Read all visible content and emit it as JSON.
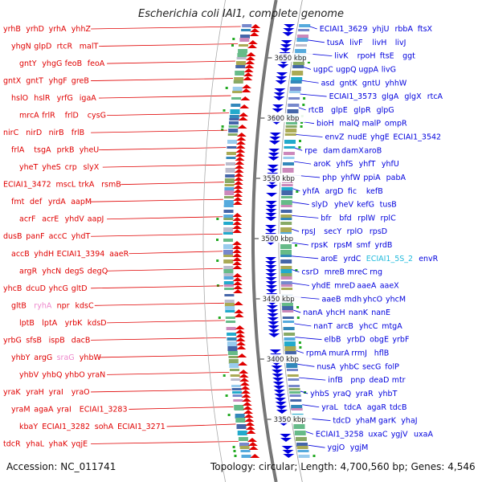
{
  "title": "Escherichia coli IAI1, complete genome",
  "footer": {
    "accession": "Accession: NC_011741",
    "topology": "Topology: circular; Length: 4,700,560 bp; Genes: 4,546"
  },
  "colors": {
    "left_strand": "#e00000",
    "right_strand": "#0000dd",
    "rna": "#ee88cc",
    "rrna": "#22bbdd",
    "backbone": "#777777",
    "marker": "#22aa22"
  },
  "scale": [
    {
      "label": "3650 kbp",
      "pos": 3650
    },
    {
      "label": "3600 kbp",
      "pos": 3600
    },
    {
      "label": "3550 kbp",
      "pos": 3550
    },
    {
      "label": "3500 kbp",
      "pos": 3500
    },
    {
      "label": "3450 kbp",
      "pos": 3450
    },
    {
      "label": "3400 kbp",
      "pos": 3400
    },
    {
      "label": "3350 kbp",
      "pos": 3350
    }
  ],
  "left_genes": [
    {
      "label": "yrhB",
      "kind": "cds"
    },
    {
      "label": "yrhD",
      "kind": "cds"
    },
    {
      "label": "yrhA",
      "kind": "cds"
    },
    {
      "label": "yhhZ",
      "kind": "cds"
    },
    {
      "label": "yhgN",
      "kind": "cds"
    },
    {
      "label": "glpD",
      "kind": "cds"
    },
    {
      "label": "rtcR",
      "kind": "cds"
    },
    {
      "label": "malT",
      "kind": "cds"
    },
    {
      "label": "gntY",
      "kind": "cds"
    },
    {
      "label": "yhgG",
      "kind": "cds"
    },
    {
      "label": "feoB",
      "kind": "cds"
    },
    {
      "label": "feoA",
      "kind": "cds"
    },
    {
      "label": "gntX",
      "kind": "cds"
    },
    {
      "label": "gntT",
      "kind": "cds"
    },
    {
      "label": "yhgF",
      "kind": "cds"
    },
    {
      "label": "greB",
      "kind": "cds"
    },
    {
      "label": "hslO",
      "kind": "cds"
    },
    {
      "label": "hslR",
      "kind": "cds"
    },
    {
      "label": "yrfG",
      "kind": "cds"
    },
    {
      "label": "igaA",
      "kind": "cds"
    },
    {
      "label": "mrcA",
      "kind": "cds"
    },
    {
      "label": "frlR",
      "kind": "cds"
    },
    {
      "label": "frlD",
      "kind": "cds"
    },
    {
      "label": "cysG",
      "kind": "cds"
    },
    {
      "label": "nirC",
      "kind": "cds"
    },
    {
      "label": "nirD",
      "kind": "cds"
    },
    {
      "label": "nirB",
      "kind": "cds"
    },
    {
      "label": "frlB",
      "kind": "cds"
    },
    {
      "label": "frlA",
      "kind": "cds"
    },
    {
      "label": "tsgA",
      "kind": "cds"
    },
    {
      "label": "prkB",
      "kind": "cds"
    },
    {
      "label": "yheU",
      "kind": "cds"
    },
    {
      "label": "yheT",
      "kind": "cds"
    },
    {
      "label": "yheS",
      "kind": "cds"
    },
    {
      "label": "crp",
      "kind": "cds"
    },
    {
      "label": "slyX",
      "kind": "cds"
    },
    {
      "label": "ECIAI1_3472",
      "kind": "cds"
    },
    {
      "label": "mscL",
      "kind": "cds"
    },
    {
      "label": "trkA",
      "kind": "cds"
    },
    {
      "label": "rsmB",
      "kind": "cds"
    },
    {
      "label": "fmt",
      "kind": "cds"
    },
    {
      "label": "def",
      "kind": "cds"
    },
    {
      "label": "yrdA",
      "kind": "cds"
    },
    {
      "label": "aapM",
      "kind": "cds"
    },
    {
      "label": "acrF",
      "kind": "cds"
    },
    {
      "label": "acrE",
      "kind": "cds"
    },
    {
      "label": "yhdV",
      "kind": "cds"
    },
    {
      "label": "aapJ",
      "kind": "cds"
    },
    {
      "label": "dusB",
      "kind": "cds"
    },
    {
      "label": "panF",
      "kind": "cds"
    },
    {
      "label": "accC",
      "kind": "cds"
    },
    {
      "label": "yhdT",
      "kind": "cds"
    },
    {
      "label": "accB",
      "kind": "cds"
    },
    {
      "label": "yhdH",
      "kind": "cds"
    },
    {
      "label": "ECIAI1_3394",
      "kind": "cds"
    },
    {
      "label": "aaeR",
      "kind": "cds"
    },
    {
      "label": "argR",
      "kind": "cds"
    },
    {
      "label": "yhcN",
      "kind": "cds"
    },
    {
      "label": "degS",
      "kind": "cds"
    },
    {
      "label": "degQ",
      "kind": "cds"
    },
    {
      "label": "yhcB",
      "kind": "cds"
    },
    {
      "label": "dcuD",
      "kind": "cds"
    },
    {
      "label": "yhcG",
      "kind": "cds"
    },
    {
      "label": "gltD",
      "kind": "cds"
    },
    {
      "label": "gltB",
      "kind": "cds"
    },
    {
      "label": "ryhA",
      "kind": "rna"
    },
    {
      "label": "npr",
      "kind": "cds"
    },
    {
      "label": "kdsC",
      "kind": "cds"
    },
    {
      "label": "lptB",
      "kind": "cds"
    },
    {
      "label": "lptA",
      "kind": "cds"
    },
    {
      "label": "yrbK",
      "kind": "cds"
    },
    {
      "label": "kdsD",
      "kind": "cds"
    },
    {
      "label": "yrbG",
      "kind": "cds"
    },
    {
      "label": "sfsB",
      "kind": "cds"
    },
    {
      "label": "ispB",
      "kind": "cds"
    },
    {
      "label": "dacB",
      "kind": "cds"
    },
    {
      "label": "yhbY",
      "kind": "cds"
    },
    {
      "label": "argG",
      "kind": "cds"
    },
    {
      "label": "sraG",
      "kind": "rna"
    },
    {
      "label": "yhbW",
      "kind": "cds"
    },
    {
      "label": "yhbV",
      "kind": "cds"
    },
    {
      "label": "yhbQ",
      "kind": "cds"
    },
    {
      "label": "yhbO",
      "kind": "cds"
    },
    {
      "label": "yraN",
      "kind": "cds"
    },
    {
      "label": "yraK",
      "kind": "cds"
    },
    {
      "label": "yraH",
      "kind": "cds"
    },
    {
      "label": "yraI",
      "kind": "cds"
    },
    {
      "label": "yraO",
      "kind": "cds"
    },
    {
      "label": "yraM",
      "kind": "cds"
    },
    {
      "label": "agaA",
      "kind": "cds"
    },
    {
      "label": "yraI",
      "kind": "cds"
    },
    {
      "label": "ECIAI1_3283",
      "kind": "cds"
    },
    {
      "label": "kbaY",
      "kind": "cds"
    },
    {
      "label": "ECIAI1_3282",
      "kind": "cds"
    },
    {
      "label": "sohA",
      "kind": "cds"
    },
    {
      "label": "ECIAI1_3271",
      "kind": "cds"
    },
    {
      "label": "tdcR",
      "kind": "cds"
    },
    {
      "label": "yhaL",
      "kind": "cds"
    },
    {
      "label": "yhaK",
      "kind": "cds"
    },
    {
      "label": "yqjE",
      "kind": "cds"
    }
  ],
  "right_genes": [
    {
      "label": "ECIAI1_3629",
      "kind": "cds"
    },
    {
      "label": "yhjU",
      "kind": "cds"
    },
    {
      "label": "rbbA",
      "kind": "cds"
    },
    {
      "label": "ftsX",
      "kind": "cds"
    },
    {
      "label": "tusA",
      "kind": "cds"
    },
    {
      "label": "livF",
      "kind": "cds"
    },
    {
      "label": "livH",
      "kind": "cds"
    },
    {
      "label": "livJ",
      "kind": "cds"
    },
    {
      "label": "livK",
      "kind": "cds"
    },
    {
      "label": "rpoH",
      "kind": "cds"
    },
    {
      "label": "ftsE",
      "kind": "cds"
    },
    {
      "label": "ggt",
      "kind": "cds"
    },
    {
      "label": "ugpC",
      "kind": "cds"
    },
    {
      "label": "ugpQ",
      "kind": "cds"
    },
    {
      "label": "ugpA",
      "kind": "cds"
    },
    {
      "label": "livG",
      "kind": "cds"
    },
    {
      "label": "asd",
      "kind": "cds"
    },
    {
      "label": "gntK",
      "kind": "cds"
    },
    {
      "label": "gntU",
      "kind": "cds"
    },
    {
      "label": "yhhW",
      "kind": "cds"
    },
    {
      "label": "ECIAI1_3573",
      "kind": "cds"
    },
    {
      "label": "glgA",
      "kind": "cds"
    },
    {
      "label": "glgX",
      "kind": "cds"
    },
    {
      "label": "rtcA",
      "kind": "cds"
    },
    {
      "label": "rtcB",
      "kind": "cds"
    },
    {
      "label": "glpE",
      "kind": "cds"
    },
    {
      "label": "glpR",
      "kind": "cds"
    },
    {
      "label": "glpG",
      "kind": "cds"
    },
    {
      "label": "bioH",
      "kind": "cds"
    },
    {
      "label": "malQ",
      "kind": "cds"
    },
    {
      "label": "malP",
      "kind": "cds"
    },
    {
      "label": "ompR",
      "kind": "cds"
    },
    {
      "label": "envZ",
      "kind": "cds"
    },
    {
      "label": "nudE",
      "kind": "cds"
    },
    {
      "label": "yhgE",
      "kind": "cds"
    },
    {
      "label": "ECIAI1_3542",
      "kind": "cds"
    },
    {
      "label": "rpe",
      "kind": "cds"
    },
    {
      "label": "dam",
      "kind": "cds"
    },
    {
      "label": "damX",
      "kind": "cds"
    },
    {
      "label": "aroB",
      "kind": "cds"
    },
    {
      "label": "aroK",
      "kind": "cds"
    },
    {
      "label": "yhfS",
      "kind": "cds"
    },
    {
      "label": "yhfT",
      "kind": "cds"
    },
    {
      "label": "yhfU",
      "kind": "cds"
    },
    {
      "label": "php",
      "kind": "cds"
    },
    {
      "label": "yhfW",
      "kind": "cds"
    },
    {
      "label": "ppiA",
      "kind": "cds"
    },
    {
      "label": "pabA",
      "kind": "cds"
    },
    {
      "label": "yhfA",
      "kind": "cds"
    },
    {
      "label": "argD",
      "kind": "cds"
    },
    {
      "label": "fic",
      "kind": "cds"
    },
    {
      "label": "kefB",
      "kind": "cds"
    },
    {
      "label": "slyD",
      "kind": "cds"
    },
    {
      "label": "yheV",
      "kind": "cds"
    },
    {
      "label": "kefG",
      "kind": "cds"
    },
    {
      "label": "tusB",
      "kind": "cds"
    },
    {
      "label": "bfr",
      "kind": "cds"
    },
    {
      "label": "bfd",
      "kind": "cds"
    },
    {
      "label": "rplW",
      "kind": "cds"
    },
    {
      "label": "rplC",
      "kind": "cds"
    },
    {
      "label": "rpsJ",
      "kind": "cds"
    },
    {
      "label": "secY",
      "kind": "cds"
    },
    {
      "label": "rplO",
      "kind": "cds"
    },
    {
      "label": "rpsD",
      "kind": "cds"
    },
    {
      "label": "rpsK",
      "kind": "cds"
    },
    {
      "label": "rpsM",
      "kind": "cds"
    },
    {
      "label": "smf",
      "kind": "cds"
    },
    {
      "label": "yrdB",
      "kind": "cds"
    },
    {
      "label": "aroE",
      "kind": "cds"
    },
    {
      "label": "yrdC",
      "kind": "cds"
    },
    {
      "label": "ECIAI1_5S_2",
      "kind": "rrna"
    },
    {
      "label": "envR",
      "kind": "cds"
    },
    {
      "label": "csrD",
      "kind": "cds"
    },
    {
      "label": "mreB",
      "kind": "cds"
    },
    {
      "label": "mreC",
      "kind": "cds"
    },
    {
      "label": "rng",
      "kind": "cds"
    },
    {
      "label": "yhdE",
      "kind": "cds"
    },
    {
      "label": "mreD",
      "kind": "cds"
    },
    {
      "label": "aaeA",
      "kind": "cds"
    },
    {
      "label": "aaeX",
      "kind": "cds"
    },
    {
      "label": "aaeB",
      "kind": "cds"
    },
    {
      "label": "mdh",
      "kind": "cds"
    },
    {
      "label": "yhcO",
      "kind": "cds"
    },
    {
      "label": "yhcM",
      "kind": "cds"
    },
    {
      "label": "nanA",
      "kind": "cds"
    },
    {
      "label": "yhcH",
      "kind": "cds"
    },
    {
      "label": "nanK",
      "kind": "cds"
    },
    {
      "label": "nanE",
      "kind": "cds"
    },
    {
      "label": "nanT",
      "kind": "cds"
    },
    {
      "label": "arcB",
      "kind": "cds"
    },
    {
      "label": "yhcC",
      "kind": "cds"
    },
    {
      "label": "mtgA",
      "kind": "cds"
    },
    {
      "label": "elbB",
      "kind": "cds"
    },
    {
      "label": "yrbD",
      "kind": "cds"
    },
    {
      "label": "obgE",
      "kind": "cds"
    },
    {
      "label": "yrbF",
      "kind": "cds"
    },
    {
      "label": "rpmA",
      "kind": "cds"
    },
    {
      "label": "murA",
      "kind": "cds"
    },
    {
      "label": "rrmJ",
      "kind": "cds"
    },
    {
      "label": "hflB",
      "kind": "cds"
    },
    {
      "label": "nusA",
      "kind": "cds"
    },
    {
      "label": "yhbC",
      "kind": "cds"
    },
    {
      "label": "secG",
      "kind": "cds"
    },
    {
      "label": "folP",
      "kind": "cds"
    },
    {
      "label": "infB",
      "kind": "cds"
    },
    {
      "label": "pnp",
      "kind": "cds"
    },
    {
      "label": "deaD",
      "kind": "cds"
    },
    {
      "label": "mtr",
      "kind": "cds"
    },
    {
      "label": "yhbS",
      "kind": "cds"
    },
    {
      "label": "yraQ",
      "kind": "cds"
    },
    {
      "label": "yraR",
      "kind": "cds"
    },
    {
      "label": "yhbT",
      "kind": "cds"
    },
    {
      "label": "yraL",
      "kind": "cds"
    },
    {
      "label": "tdcA",
      "kind": "cds"
    },
    {
      "label": "agaR",
      "kind": "cds"
    },
    {
      "label": "tdcB",
      "kind": "cds"
    },
    {
      "label": "tdcD",
      "kind": "cds"
    },
    {
      "label": "yhaM",
      "kind": "cds"
    },
    {
      "label": "garK",
      "kind": "cds"
    },
    {
      "label": "yhaJ",
      "kind": "cds"
    },
    {
      "label": "ECIAI1_3258",
      "kind": "cds"
    },
    {
      "label": "uxaC",
      "kind": "cds"
    },
    {
      "label": "ygjV",
      "kind": "cds"
    },
    {
      "label": "uxaA",
      "kind": "cds"
    },
    {
      "label": "ygjO",
      "kind": "cds"
    },
    {
      "label": "ygjM",
      "kind": "cds"
    }
  ]
}
